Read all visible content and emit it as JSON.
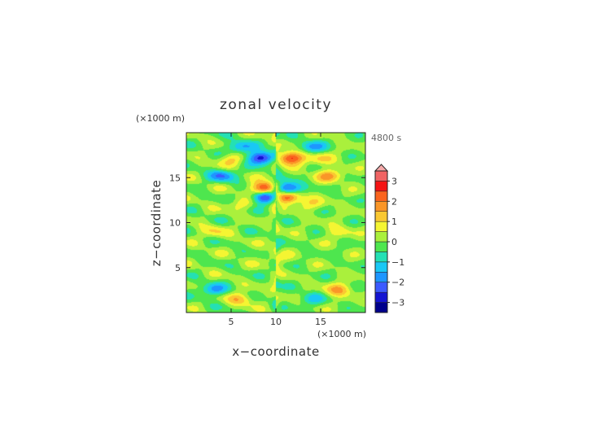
{
  "chart_data": {
    "type": "heatmap",
    "title": "zonal velocity",
    "time_label": "4800 s",
    "xlabel": "x−coordinate",
    "ylabel": "z−coordinate",
    "x_unit_label": "(×1000 m)",
    "y_unit_label": "(×1000 m)",
    "xlim": [
      0,
      20
    ],
    "ylim": [
      0,
      20
    ],
    "x_ticks": [
      5,
      10,
      15
    ],
    "y_ticks": [
      5,
      10,
      15
    ],
    "colorbar": {
      "levels": [
        -3.5,
        -3,
        -2.5,
        -2,
        -1.5,
        -1,
        -0.5,
        0,
        0.5,
        1,
        1.5,
        2,
        2.5,
        3,
        3.5
      ],
      "colors": [
        "#00008b",
        "#1414d2",
        "#3c5aff",
        "#1e96ff",
        "#19c8f5",
        "#24e0b4",
        "#4ee64e",
        "#aaf03c",
        "#f5f532",
        "#fac832",
        "#fa9628",
        "#fa641e",
        "#f51414",
        "#f06464",
        "#f5aaaa"
      ],
      "extend": "max",
      "tick_values": [
        3,
        2,
        1,
        0,
        -1,
        -2,
        -3
      ],
      "tick_labels": [
        "3",
        "2",
        "1",
        "0",
        "−1",
        "−2",
        "−3"
      ]
    },
    "field_description_components": [
      {
        "x": 6,
        "y": 18.4,
        "amp": -1.6
      },
      {
        "x": 14,
        "y": 18.4,
        "amp": -1.6
      },
      {
        "x": 8.4,
        "y": 17.2,
        "amp": -3.2
      },
      {
        "x": 11.6,
        "y": 17.2,
        "amp": 3.0
      },
      {
        "x": 5,
        "y": 17,
        "amp": 1.2
      },
      {
        "x": 15,
        "y": 17,
        "amp": 1.0
      },
      {
        "x": 4,
        "y": 15.2,
        "amp": -1.8
      },
      {
        "x": 16,
        "y": 15.2,
        "amp": 1.5
      },
      {
        "x": 8.8,
        "y": 13.8,
        "amp": 3.2
      },
      {
        "x": 11.2,
        "y": 13.8,
        "amp": -3.2
      },
      {
        "x": 8.8,
        "y": 12.8,
        "amp": -3.0
      },
      {
        "x": 11.2,
        "y": 12.8,
        "amp": 3.0
      },
      {
        "x": 6,
        "y": 12,
        "amp": 0.8
      },
      {
        "x": 14,
        "y": 12,
        "amp": 0.8
      },
      {
        "x": 3,
        "y": 9,
        "amp": 0.8
      },
      {
        "x": 17,
        "y": 9,
        "amp": 0.8
      },
      {
        "x": 3,
        "y": 2.5,
        "amp": -1.6
      },
      {
        "x": 17,
        "y": 2.5,
        "amp": 1.6
      },
      {
        "x": 6,
        "y": 1.5,
        "amp": 1.3
      },
      {
        "x": 14,
        "y": 1.5,
        "amp": -1.0
      },
      {
        "x": 10,
        "y": 6,
        "amp": 0.6
      }
    ]
  }
}
